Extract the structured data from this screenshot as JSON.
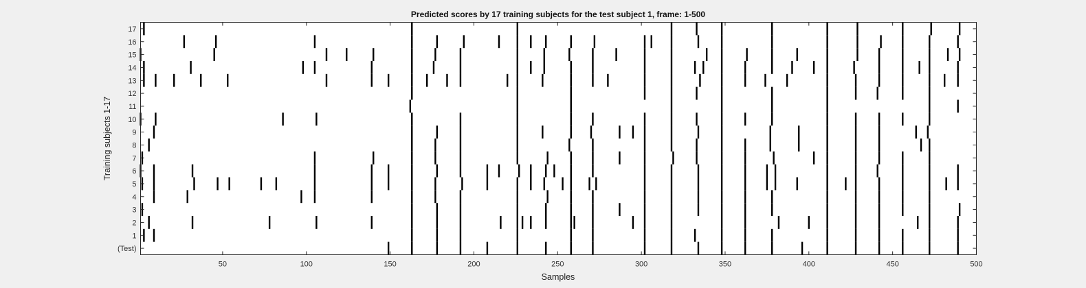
{
  "window": {
    "background": "#f0f0f0"
  },
  "chart_data": {
    "type": "heatmap",
    "title": "Predicted scores by 17 training subjects for the test subject 1, frame: 1-500",
    "xlabel": "Samples",
    "ylabel": "Training subjects 1-17",
    "xlim": [
      1,
      500
    ],
    "xticks": [
      50,
      100,
      150,
      200,
      250,
      300,
      350,
      400,
      450,
      500
    ],
    "yticklabels": [
      "(Test)",
      "1",
      "2",
      "3",
      "4",
      "5",
      "6",
      "7",
      "8",
      "9",
      "10",
      "11",
      "12",
      "13",
      "14",
      "15",
      "16",
      "17"
    ],
    "grid": false,
    "legend": "none",
    "colors": {
      "mark": "#000000",
      "background": "#ffffff",
      "axes": "#262626"
    },
    "rows": [
      {
        "label": "(Test)",
        "samples": [
          149,
          163,
          178,
          192,
          208,
          226,
          243,
          258,
          271,
          302,
          318,
          334,
          348,
          362,
          378,
          396,
          411,
          428,
          442,
          456,
          472,
          489
        ]
      },
      {
        "label": "1",
        "samples": [
          3,
          9,
          163,
          178,
          192,
          226,
          258,
          271,
          302,
          318,
          332,
          348,
          362,
          378,
          411,
          428,
          442,
          456,
          472,
          489
        ]
      },
      {
        "label": "2",
        "samples": [
          6,
          32,
          78,
          106,
          139,
          163,
          178,
          192,
          216,
          226,
          229,
          234,
          243,
          258,
          260,
          271,
          295,
          302,
          318,
          348,
          362,
          382,
          400,
          411,
          428,
          442,
          465,
          472,
          489
        ]
      },
      {
        "label": "3",
        "samples": [
          2,
          163,
          178,
          192,
          226,
          243,
          258,
          271,
          287,
          302,
          318,
          334,
          348,
          362,
          378,
          411,
          428,
          442,
          456,
          472,
          490
        ]
      },
      {
        "label": "4",
        "samples": [
          9,
          29,
          97,
          105,
          139,
          163,
          177,
          192,
          226,
          244,
          258,
          271,
          302,
          318,
          334,
          348,
          362,
          378,
          411,
          428,
          442,
          456,
          472
        ]
      },
      {
        "label": "5",
        "samples": [
          2,
          9,
          33,
          47,
          54,
          73,
          82,
          105,
          139,
          149,
          163,
          177,
          193,
          208,
          226,
          234,
          242,
          253,
          258,
          269,
          273,
          302,
          318,
          334,
          348,
          362,
          375,
          380,
          393,
          411,
          422,
          428,
          442,
          456,
          472,
          482,
          489
        ]
      },
      {
        "label": "6",
        "samples": [
          1,
          9,
          32,
          105,
          139,
          149,
          163,
          178,
          192,
          208,
          215,
          227,
          234,
          243,
          248,
          258,
          271,
          302,
          318,
          334,
          348,
          362,
          375,
          380,
          411,
          428,
          441,
          456,
          472,
          489
        ]
      },
      {
        "label": "7",
        "samples": [
          2,
          105,
          140,
          163,
          177,
          192,
          226,
          244,
          258,
          271,
          287,
          302,
          319,
          333,
          348,
          362,
          379,
          403,
          411,
          428,
          442,
          456,
          472
        ]
      },
      {
        "label": "8",
        "samples": [
          6,
          163,
          177,
          192,
          226,
          257,
          271,
          302,
          318,
          333,
          348,
          362,
          377,
          394,
          411,
          428,
          442,
          467,
          472
        ]
      },
      {
        "label": "9",
        "samples": [
          9,
          163,
          178,
          192,
          226,
          241,
          258,
          270,
          287,
          295,
          302,
          318,
          334,
          348,
          377,
          394,
          411,
          428,
          442,
          464,
          471
        ]
      },
      {
        "label": "10",
        "samples": [
          1,
          10,
          86,
          106,
          163,
          192,
          226,
          258,
          271,
          302,
          318,
          333,
          348,
          362,
          378,
          411,
          428,
          442,
          456,
          472
        ]
      },
      {
        "label": "11",
        "samples": [
          162,
          226,
          258,
          318,
          348,
          378,
          411,
          472,
          489
        ]
      },
      {
        "label": "12",
        "samples": [
          163,
          226,
          258,
          302,
          318,
          333,
          348,
          378,
          411,
          428,
          441,
          456,
          472
        ]
      },
      {
        "label": "13",
        "samples": [
          3,
          10,
          21,
          37,
          53,
          112,
          139,
          149,
          163,
          172,
          184,
          192,
          220,
          226,
          241,
          258,
          271,
          280,
          302,
          318,
          335,
          348,
          362,
          374,
          387,
          411,
          428,
          442,
          456,
          472,
          481,
          489
        ]
      },
      {
        "label": "14",
        "samples": [
          3,
          31,
          98,
          105,
          139,
          163,
          176,
          192,
          226,
          234,
          242,
          258,
          271,
          302,
          318,
          332,
          337,
          348,
          362,
          378,
          390,
          403,
          411,
          427,
          442,
          456,
          466,
          472,
          489
        ]
      },
      {
        "label": "15",
        "samples": [
          1,
          45,
          112,
          124,
          140,
          163,
          177,
          192,
          226,
          242,
          257,
          271,
          285,
          302,
          318,
          339,
          348,
          363,
          378,
          393,
          411,
          429,
          442,
          456,
          472,
          483,
          490
        ]
      },
      {
        "label": "16",
        "samples": [
          27,
          46,
          105,
          163,
          178,
          194,
          215,
          226,
          234,
          243,
          258,
          272,
          302,
          306,
          318,
          334,
          348,
          378,
          411,
          429,
          443,
          456,
          472,
          489
        ]
      },
      {
        "label": "17",
        "samples": [
          3,
          163,
          226,
          318,
          333,
          348,
          378,
          411,
          429,
          456,
          473,
          490
        ]
      }
    ]
  }
}
